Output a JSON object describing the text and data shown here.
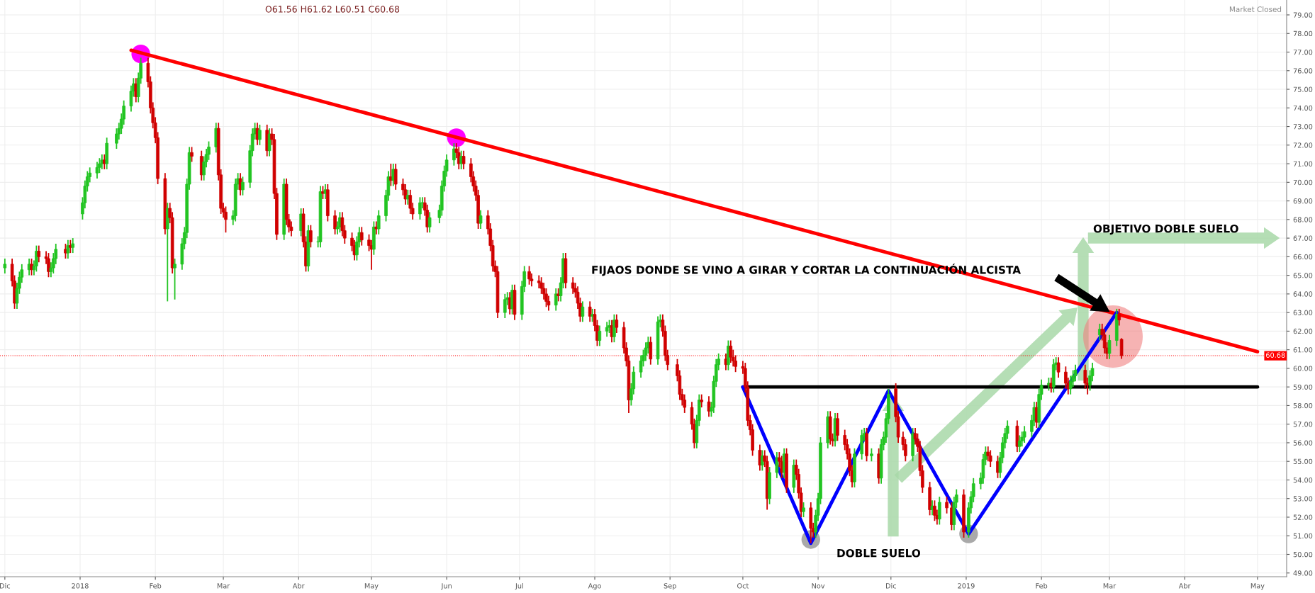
{
  "chart_data": {
    "type": "candlestick",
    "colors": [
      "#22c422",
      "#d00000",
      "#d00000",
      "#22c422",
      "#22c422",
      "#22c422",
      "#22c422",
      "#d00000",
      "#22c422",
      "#22c422",
      "#d00000",
      "#d00000",
      "#d00000",
      "#22c422",
      "#22c422",
      "#22c422",
      "#d00000",
      "#22c422",
      "#d00000",
      "#22c422",
      "#22c422",
      "#22c422",
      "#22c422",
      "#22c422",
      "#22c422",
      "#22c422",
      "#22c422",
      "#d00000",
      "#22c422",
      "#22c422",
      "#22c422",
      "#22c422",
      "#22c422",
      "#22c422",
      "#22c422",
      "#d00000",
      "#22c422",
      "#22c422",
      "#d00000",
      "#d00000",
      "#d00000",
      "#d00000",
      "#d00000",
      "#d00000",
      "#22c422",
      "#d00000",
      "#d00000",
      "#22c422",
      "#22c422",
      "#22c422",
      "#22c422",
      "#22c422",
      "#d00000",
      "#d00000",
      "#22c422",
      "#22c422",
      "#22c422",
      "#22c422",
      "#d00000",
      "#d00000",
      "#d00000",
      "#d00000",
      "#22c422",
      "#22c422",
      "#22c422",
      "#d00000",
      "#22c422",
      "#22c422",
      "#22c422",
      "#22c422",
      "#d00000",
      "#22c422",
      "#d00000",
      "#22c422",
      "#d00000",
      "#d00000",
      "#d00000",
      "#22c422",
      "#d00000",
      "#d00000",
      "#d00000",
      "#22c422",
      "#d00000",
      "#d00000",
      "#22c422",
      "#d00000",
      "#22c422",
      "#22c422",
      "#d00000",
      "#22c422",
      "#d00000",
      "#d00000",
      "#22c422",
      "#22c422",
      "#d00000",
      "#d00000",
      "#d00000",
      "#d00000",
      "#22c422",
      "#22c422",
      "#d00000",
      "#d00000",
      "#d00000",
      "#22c422",
      "#d00000",
      "#22c422",
      "#22c422",
      "#22c422",
      "#d00000",
      "#22c422",
      "#d00000",
      "#d00000",
      "#d00000",
      "#22c422",
      "#d00000",
      "#d00000",
      "#22c422",
      "#22c422",
      "#d00000",
      "#d00000",
      "#22c422",
      "#22c422",
      "#22c422",
      "#22c422",
      "#22c422",
      "#22c422",
      "#d00000",
      "#d00000",
      "#22c422",
      "#d00000",
      "#d00000",
      "#d00000",
      "#d00000",
      "#d00000",
      "#22c422",
      "#d00000",
      "#d00000",
      "#d00000",
      "#d00000",
      "#d00000",
      "#22c422",
      "#22c422",
      "#d00000",
      "#22c422",
      "#d00000",
      "#22c422",
      "#22c422",
      "#d00000",
      "#d00000",
      "#d00000",
      "#d00000",
      "#d00000",
      "#d00000",
      "#d00000",
      "#22c422",
      "#d00000",
      "#22c422",
      "#22c422",
      "#d00000",
      "#d00000",
      "#d00000",
      "#d00000",
      "#d00000",
      "#22c422",
      "#d00000",
      "#22c422",
      "#d00000",
      "#d00000",
      "#22c422",
      "#22c422",
      "#22c422",
      "#d00000",
      "#22c422",
      "#d00000",
      "#d00000",
      "#d00000",
      "#d00000",
      "#22c422",
      "#22c422",
      "#22c422",
      "#22c422",
      "#22c422",
      "#22c422",
      "#d00000",
      "#22c422",
      "#22c422",
      "#d00000",
      "#d00000",
      "#d00000",
      "#d00000",
      "#d00000",
      "#d00000",
      "#d00000",
      "#d00000",
      "#d00000",
      "#22c422",
      "#22c422",
      "#d00000",
      "#d00000",
      "#22c422",
      "#22c422",
      "#22c422",
      "#22c422",
      "#d00000",
      "#22c422",
      "#d00000",
      "#d00000",
      "#d00000",
      "#d00000",
      "#d00000",
      "#d00000",
      "#d00000",
      "#d00000",
      "#d00000",
      "#22c422",
      "#d00000",
      "#d00000",
      "#22c422",
      "#22c422",
      "#d00000",
      "#d00000",
      "#22c422",
      "#d00000",
      "#22c422",
      "#d00000",
      "#d00000",
      "#d00000",
      "#22c422",
      "#d00000",
      "#d00000",
      "#22c422",
      "#22c422",
      "#22c422",
      "#22c422",
      "#d00000",
      "#d00000",
      "#22c422",
      "#d00000",
      "#d00000",
      "#d00000",
      "#d00000",
      "#d00000",
      "#22c422",
      "#22c422",
      "#22c422",
      "#d00000",
      "#22c422",
      "#d00000",
      "#22c422",
      "#22c422",
      "#22c422",
      "#22c422",
      "#d00000",
      "#d00000",
      "#d00000",
      "#d00000",
      "#22c422",
      "#d00000",
      "#d00000",
      "#d00000",
      "#d00000",
      "#d00000",
      "#22c422",
      "#d00000",
      "#d00000",
      "#22c422",
      "#d00000",
      "#d00000",
      "#22c422",
      "#22c422",
      "#d00000",
      "#22c422",
      "#22c422",
      "#22c422",
      "#22c422",
      "#22c422",
      "#22c422",
      "#d00000",
      "#d00000",
      "#d00000",
      "#22c422",
      "#22c422",
      "#22c422",
      "#22c422",
      "#d00000",
      "#22c422",
      "#22c422",
      "#22c422",
      "#22c422",
      "#22c422",
      "#d00000",
      "#22c422",
      "#22c422",
      "#22c422",
      "#d00000",
      "#22c422",
      "#22c422",
      "#d00000",
      "#d00000",
      "#d00000",
      "#22c422",
      "#22c422",
      "#22c422",
      "#d00000",
      "#d00000",
      "#22c422",
      "#22c422",
      "#22c422",
      "#d00000",
      "#d00000",
      "#d00000",
      "#22c422",
      "#22c422",
      "#d00000",
      "#d00000"
    ],
    "xlim": [
      "2017-11-29",
      "2019-05-13"
    ],
    "ylim": [
      48.8,
      79.8
    ],
    "xticks": [
      {
        "value": "2017-12-01",
        "label": "Dic"
      },
      {
        "value": "2018-01-01",
        "label": "2018"
      },
      {
        "value": "2018-02-01",
        "label": "Feb"
      },
      {
        "value": "2018-03-01",
        "label": "Mar"
      },
      {
        "value": "2018-04-01",
        "label": "Abr"
      },
      {
        "value": "2018-05-01",
        "label": "May"
      },
      {
        "value": "2018-06-01",
        "label": "Jun"
      },
      {
        "value": "2018-07-01",
        "label": "Jul"
      },
      {
        "value": "2018-08-01",
        "label": "Ago"
      },
      {
        "value": "2018-09-01",
        "label": "Sep"
      },
      {
        "value": "2018-10-01",
        "label": "Oct"
      },
      {
        "value": "2018-11-01",
        "label": "Nov"
      },
      {
        "value": "2018-12-01",
        "label": "Dic"
      },
      {
        "value": "2019-01-01",
        "label": "2019"
      },
      {
        "value": "2019-02-01",
        "label": "Feb"
      },
      {
        "value": "2019-03-01",
        "label": "Mar"
      },
      {
        "value": "2019-04-01",
        "label": "Abr"
      },
      {
        "value": "2019-05-01",
        "label": "May"
      }
    ],
    "yticks": [
      {
        "value": 49,
        "label": "49.00"
      },
      {
        "value": 50,
        "label": "50.00"
      },
      {
        "value": 51,
        "label": "51.00"
      },
      {
        "value": 52,
        "label": "52.00"
      },
      {
        "value": 53,
        "label": "53.00"
      },
      {
        "value": 54,
        "label": "54.00"
      },
      {
        "value": 55,
        "label": "55.00"
      },
      {
        "value": 56,
        "label": "56.00"
      },
      {
        "value": 57,
        "label": "57.00"
      },
      {
        "value": 58,
        "label": "58.00"
      },
      {
        "value": 59,
        "label": "59.00"
      },
      {
        "value": 60,
        "label": "60.00"
      },
      {
        "value": 61,
        "label": "61.00"
      },
      {
        "value": 62,
        "label": "62.00"
      },
      {
        "value": 63,
        "label": "63.00"
      },
      {
        "value": 64,
        "label": "64.00"
      },
      {
        "value": 65,
        "label": "65.00"
      },
      {
        "value": 66,
        "label": "66.00"
      },
      {
        "value": 67,
        "label": "67.00"
      },
      {
        "value": 68,
        "label": "68.00"
      },
      {
        "value": 69,
        "label": "69.00"
      },
      {
        "value": 70,
        "label": "70.00"
      },
      {
        "value": 71,
        "label": "71.00"
      },
      {
        "value": 72,
        "label": "72.00"
      },
      {
        "value": 73,
        "label": "73.00"
      },
      {
        "value": 74,
        "label": "74.00"
      },
      {
        "value": 75,
        "label": "75.00"
      },
      {
        "value": 76,
        "label": "76.00"
      },
      {
        "value": 77,
        "label": "77.00"
      },
      {
        "value": 78,
        "label": "78.00"
      },
      {
        "value": 79,
        "label": "79.00"
      }
    ],
    "grid": true,
    "x": [
      "2017-12-01",
      "2017-12-04",
      "2017-12-05",
      "2017-12-06",
      "2017-12-07",
      "2017-12-08",
      "2017-12-11",
      "2017-12-12",
      "2017-12-13",
      "2017-12-14",
      "2017-12-15",
      "2017-12-18",
      "2017-12-19",
      "2017-12-20",
      "2017-12-21",
      "2017-12-22",
      "2017-12-26",
      "2017-12-27",
      "2017-12-28",
      "2017-12-29",
      "2018-01-02",
      "2018-01-03",
      "2018-01-04",
      "2018-01-05",
      "2018-01-08",
      "2018-01-09",
      "2018-01-10",
      "2018-01-11",
      "2018-01-12",
      "2018-01-16",
      "2018-01-17",
      "2018-01-18",
      "2018-01-19",
      "2018-01-22",
      "2018-01-23",
      "2018-01-24",
      "2018-01-25",
      "2018-01-26",
      "2018-01-29",
      "2018-01-30",
      "2018-01-31",
      "2018-02-01",
      "2018-02-02",
      "2018-02-05",
      "2018-02-06",
      "2018-02-07",
      "2018-02-08",
      "2018-02-09",
      "2018-02-12",
      "2018-02-13",
      "2018-02-14",
      "2018-02-15",
      "2018-02-16",
      "2018-02-20",
      "2018-02-21",
      "2018-02-22",
      "2018-02-23",
      "2018-02-26",
      "2018-02-27",
      "2018-02-28",
      "2018-03-01",
      "2018-03-02",
      "2018-03-05",
      "2018-03-06",
      "2018-03-07",
      "2018-03-08",
      "2018-03-09",
      "2018-03-12",
      "2018-03-13",
      "2018-03-14",
      "2018-03-15",
      "2018-03-16",
      "2018-03-19",
      "2018-03-20",
      "2018-03-21",
      "2018-03-22",
      "2018-03-23",
      "2018-03-26",
      "2018-03-27",
      "2018-03-28",
      "2018-03-29",
      "2018-04-02",
      "2018-04-03",
      "2018-04-04",
      "2018-04-05",
      "2018-04-06",
      "2018-04-09",
      "2018-04-10",
      "2018-04-11",
      "2018-04-12",
      "2018-04-13",
      "2018-04-16",
      "2018-04-17",
      "2018-04-18",
      "2018-04-19",
      "2018-04-20",
      "2018-04-23",
      "2018-04-24",
      "2018-04-25",
      "2018-04-26",
      "2018-04-27",
      "2018-04-30",
      "2018-05-01",
      "2018-05-02",
      "2018-05-03",
      "2018-05-04",
      "2018-05-07",
      "2018-05-08",
      "2018-05-09",
      "2018-05-10",
      "2018-05-11",
      "2018-05-14",
      "2018-05-15",
      "2018-05-16",
      "2018-05-17",
      "2018-05-18",
      "2018-05-21",
      "2018-05-22",
      "2018-05-23",
      "2018-05-24",
      "2018-05-25",
      "2018-05-29",
      "2018-05-30",
      "2018-05-31",
      "2018-06-01",
      "2018-06-04",
      "2018-06-05",
      "2018-06-06",
      "2018-06-07",
      "2018-06-08",
      "2018-06-11",
      "2018-06-12",
      "2018-06-13",
      "2018-06-14",
      "2018-06-15",
      "2018-06-18",
      "2018-06-19",
      "2018-06-20",
      "2018-06-21",
      "2018-06-22",
      "2018-06-25",
      "2018-06-26",
      "2018-06-27",
      "2018-06-28",
      "2018-06-29",
      "2018-07-02",
      "2018-07-03",
      "2018-07-05",
      "2018-07-06",
      "2018-07-09",
      "2018-07-10",
      "2018-07-11",
      "2018-07-12",
      "2018-07-13",
      "2018-07-16",
      "2018-07-17",
      "2018-07-18",
      "2018-07-19",
      "2018-07-20",
      "2018-07-23",
      "2018-07-24",
      "2018-07-25",
      "2018-07-26",
      "2018-07-27",
      "2018-07-30",
      "2018-07-31",
      "2018-08-01",
      "2018-08-02",
      "2018-08-03",
      "2018-08-06",
      "2018-08-07",
      "2018-08-08",
      "2018-08-09",
      "2018-08-10",
      "2018-08-13",
      "2018-08-14",
      "2018-08-15",
      "2018-08-16",
      "2018-08-17",
      "2018-08-20",
      "2018-08-21",
      "2018-08-22",
      "2018-08-23",
      "2018-08-24",
      "2018-08-27",
      "2018-08-28",
      "2018-08-29",
      "2018-08-30",
      "2018-08-31",
      "2018-09-04",
      "2018-09-05",
      "2018-09-06",
      "2018-09-07",
      "2018-09-10",
      "2018-09-11",
      "2018-09-12",
      "2018-09-13",
      "2018-09-14",
      "2018-09-17",
      "2018-09-18",
      "2018-09-19",
      "2018-09-20",
      "2018-09-21",
      "2018-09-24",
      "2018-09-25",
      "2018-09-26",
      "2018-09-27",
      "2018-09-28",
      "2018-10-01",
      "2018-10-02",
      "2018-10-03",
      "2018-10-04",
      "2018-10-05",
      "2018-10-08",
      "2018-10-09",
      "2018-10-10",
      "2018-10-11",
      "2018-10-12",
      "2018-10-15",
      "2018-10-16",
      "2018-10-17",
      "2018-10-18",
      "2018-10-19",
      "2018-10-22",
      "2018-10-23",
      "2018-10-24",
      "2018-10-25",
      "2018-10-26",
      "2018-10-29",
      "2018-10-30",
      "2018-10-31",
      "2018-11-01",
      "2018-11-02",
      "2018-11-05",
      "2018-11-06",
      "2018-11-07",
      "2018-11-08",
      "2018-11-09",
      "2018-11-12",
      "2018-11-13",
      "2018-11-14",
      "2018-11-15",
      "2018-11-16",
      "2018-11-19",
      "2018-11-20",
      "2018-11-21",
      "2018-11-23",
      "2018-11-26",
      "2018-11-27",
      "2018-11-28",
      "2018-11-29",
      "2018-11-30",
      "2018-12-03",
      "2018-12-04",
      "2018-12-06",
      "2018-12-07",
      "2018-12-10",
      "2018-12-11",
      "2018-12-12",
      "2018-12-13",
      "2018-12-14",
      "2018-12-17",
      "2018-12-18",
      "2018-12-19",
      "2018-12-20",
      "2018-12-21",
      "2018-12-24",
      "2018-12-26",
      "2018-12-27",
      "2018-12-28",
      "2018-12-31",
      "2019-01-02",
      "2019-01-03",
      "2019-01-04",
      "2019-01-07",
      "2019-01-08",
      "2019-01-09",
      "2019-01-10",
      "2019-01-11",
      "2019-01-14",
      "2019-01-15",
      "2019-01-16",
      "2019-01-17",
      "2019-01-18",
      "2019-01-22",
      "2019-01-23",
      "2019-01-24",
      "2019-01-25",
      "2019-01-28",
      "2019-01-29",
      "2019-01-30",
      "2019-01-31",
      "2019-02-01",
      "2019-02-04",
      "2019-02-05",
      "2019-02-06",
      "2019-02-07",
      "2019-02-08",
      "2019-02-11",
      "2019-02-12",
      "2019-02-13",
      "2019-02-14",
      "2019-02-15",
      "2019-02-19",
      "2019-02-20",
      "2019-02-21",
      "2019-02-22",
      "2019-02-25",
      "2019-02-26",
      "2019-02-27",
      "2019-02-28",
      "2019-03-01",
      "2019-03-04",
      "2019-03-05",
      "2019-03-06"
    ],
    "ohlc": [
      [
        65.4,
        65.9,
        65.1,
        65.6
      ],
      [
        65.6,
        65.9,
        64.4,
        64.7
      ],
      [
        64.7,
        65.0,
        63.2,
        63.5
      ],
      [
        63.5,
        64.6,
        63.2,
        64.3
      ],
      [
        64.3,
        65.2,
        64.0,
        64.9
      ],
      [
        64.9,
        65.6,
        64.6,
        65.3
      ],
      [
        65.3,
        65.9,
        65.0,
        65.6
      ],
      [
        65.6,
        65.9,
        65.0,
        65.3
      ],
      [
        65.3,
        65.8,
        65.0,
        65.5
      ],
      [
        65.5,
        66.6,
        65.2,
        66.3
      ],
      [
        66.3,
        66.6,
        65.7,
        66.0
      ],
      [
        66.0,
        66.3,
        65.6,
        65.9
      ],
      [
        65.9,
        66.2,
        64.9,
        65.2
      ],
      [
        65.2,
        65.7,
        64.9,
        65.4
      ],
      [
        65.4,
        66.2,
        65.1,
        65.9
      ],
      [
        65.9,
        66.7,
        65.6,
        66.4
      ],
      [
        66.4,
        66.7,
        65.9,
        66.2
      ],
      [
        66.2,
        66.9,
        65.9,
        66.6
      ],
      [
        66.6,
        66.9,
        66.2,
        66.5
      ],
      [
        66.5,
        67.0,
        66.2,
        66.7
      ],
      [
        68.3,
        69.2,
        68.0,
        68.9
      ],
      [
        68.9,
        70.1,
        68.6,
        69.8
      ],
      [
        69.8,
        70.6,
        69.5,
        70.3
      ],
      [
        70.3,
        70.8,
        70.0,
        70.5
      ],
      [
        70.5,
        71.1,
        70.2,
        70.8
      ],
      [
        70.8,
        71.3,
        70.5,
        71.0
      ],
      [
        71.0,
        71.5,
        70.7,
        71.2
      ],
      [
        71.2,
        71.5,
        70.7,
        71.0
      ],
      [
        71.0,
        72.4,
        70.7,
        72.1
      ],
      [
        72.1,
        72.9,
        71.8,
        72.6
      ],
      [
        72.6,
        73.2,
        72.3,
        72.9
      ],
      [
        72.9,
        73.7,
        72.6,
        73.4
      ],
      [
        73.4,
        74.4,
        73.1,
        74.1
      ],
      [
        74.1,
        75.2,
        73.8,
        74.9
      ],
      [
        74.9,
        75.6,
        74.6,
        75.3
      ],
      [
        75.3,
        75.6,
        74.3,
        74.6
      ],
      [
        74.6,
        75.9,
        74.3,
        75.6
      ],
      [
        75.6,
        76.7,
        75.3,
        76.4
      ],
      [
        76.4,
        76.7,
        75.1,
        75.4
      ],
      [
        75.4,
        75.7,
        73.7,
        74.0
      ],
      [
        74.0,
        74.3,
        72.9,
        73.2
      ],
      [
        73.2,
        73.5,
        72.1,
        72.4
      ],
      [
        72.4,
        72.7,
        69.9,
        70.2
      ],
      [
        70.2,
        70.5,
        67.2,
        67.5
      ],
      [
        67.5,
        68.9,
        63.6,
        68.6
      ],
      [
        68.6,
        68.9,
        67.8,
        68.1
      ],
      [
        68.1,
        68.4,
        65.1,
        65.4
      ],
      [
        65.4,
        65.9,
        63.7,
        65.6
      ],
      [
        65.6,
        67.0,
        65.3,
        66.7
      ],
      [
        66.7,
        67.6,
        66.4,
        67.3
      ],
      [
        67.3,
        70.2,
        67.0,
        69.9
      ],
      [
        69.9,
        71.9,
        69.6,
        71.6
      ],
      [
        71.6,
        71.9,
        71.1,
        71.4
      ],
      [
        71.4,
        71.7,
        70.1,
        70.4
      ],
      [
        70.4,
        71.4,
        70.1,
        71.1
      ],
      [
        71.1,
        71.8,
        70.8,
        71.5
      ],
      [
        71.5,
        72.2,
        71.2,
        71.9
      ],
      [
        71.9,
        73.2,
        71.6,
        72.9
      ],
      [
        72.9,
        73.2,
        70.1,
        70.4
      ],
      [
        70.4,
        70.7,
        68.3,
        68.6
      ],
      [
        68.6,
        68.9,
        68.1,
        68.4
      ],
      [
        68.4,
        68.7,
        67.3,
        68.0
      ],
      [
        68.0,
        68.5,
        67.7,
        68.2
      ],
      [
        68.2,
        70.2,
        67.9,
        69.9
      ],
      [
        69.9,
        70.5,
        69.6,
        70.2
      ],
      [
        70.2,
        70.5,
        69.3,
        69.6
      ],
      [
        69.6,
        70.3,
        69.3,
        70.0
      ],
      [
        70.0,
        72.0,
        69.7,
        71.7
      ],
      [
        71.7,
        72.9,
        71.4,
        72.6
      ],
      [
        72.6,
        73.2,
        72.3,
        72.9
      ],
      [
        72.9,
        73.2,
        72.0,
        72.3
      ],
      [
        72.3,
        73.1,
        72.0,
        72.8
      ],
      [
        72.8,
        73.1,
        71.4,
        71.7
      ],
      [
        71.7,
        72.9,
        71.4,
        72.6
      ],
      [
        72.6,
        72.9,
        72.0,
        72.3
      ],
      [
        72.3,
        72.6,
        69.1,
        69.4
      ],
      [
        69.4,
        69.7,
        66.9,
        67.2
      ],
      [
        67.2,
        70.2,
        66.9,
        69.9
      ],
      [
        69.9,
        70.2,
        67.7,
        68.0
      ],
      [
        68.0,
        68.3,
        67.3,
        67.6
      ],
      [
        67.6,
        67.9,
        67.1,
        67.4
      ],
      [
        67.4,
        68.6,
        67.1,
        68.3
      ],
      [
        68.3,
        68.6,
        66.5,
        66.8
      ],
      [
        66.8,
        67.1,
        65.2,
        65.5
      ],
      [
        65.5,
        67.7,
        65.2,
        67.4
      ],
      [
        67.4,
        67.7,
        66.5,
        66.8
      ],
      [
        66.8,
        67.1,
        66.5,
        66.8
      ],
      [
        66.8,
        69.8,
        66.5,
        69.5
      ],
      [
        69.5,
        69.8,
        69.1,
        69.4
      ],
      [
        69.4,
        69.9,
        69.1,
        69.6
      ],
      [
        69.6,
        69.9,
        67.9,
        68.2
      ],
      [
        68.2,
        68.5,
        67.2,
        67.5
      ],
      [
        67.5,
        67.9,
        67.2,
        67.6
      ],
      [
        67.6,
        68.4,
        67.3,
        68.1
      ],
      [
        68.1,
        68.4,
        67.1,
        67.4
      ],
      [
        67.4,
        67.7,
        66.7,
        67.0
      ],
      [
        67.0,
        67.3,
        66.3,
        66.6
      ],
      [
        66.6,
        66.9,
        65.8,
        66.1
      ],
      [
        66.1,
        67.1,
        65.8,
        66.8
      ],
      [
        66.8,
        67.6,
        66.5,
        67.3
      ],
      [
        67.3,
        67.6,
        66.6,
        66.9
      ],
      [
        66.9,
        67.2,
        66.3,
        66.6
      ],
      [
        66.6,
        66.9,
        65.3,
        66.4
      ],
      [
        66.4,
        67.9,
        66.1,
        67.6
      ],
      [
        67.6,
        67.9,
        67.2,
        67.5
      ],
      [
        67.5,
        68.5,
        67.2,
        68.2
      ],
      [
        68.2,
        69.6,
        67.9,
        69.3
      ],
      [
        69.3,
        70.6,
        69.0,
        70.3
      ],
      [
        70.3,
        71.0,
        69.8,
        70.1
      ],
      [
        70.1,
        71.0,
        69.8,
        70.7
      ],
      [
        70.7,
        71.0,
        69.6,
        69.9
      ],
      [
        69.9,
        70.2,
        69.3,
        69.6
      ],
      [
        69.6,
        69.9,
        68.8,
        69.1
      ],
      [
        69.1,
        69.6,
        68.8,
        69.3
      ],
      [
        69.3,
        69.6,
        68.3,
        68.6
      ],
      [
        68.6,
        68.9,
        68.0,
        68.3
      ],
      [
        68.3,
        69.2,
        68.0,
        68.9
      ],
      [
        68.9,
        69.2,
        68.6,
        68.9
      ],
      [
        68.9,
        69.2,
        68.2,
        68.5
      ],
      [
        68.5,
        68.8,
        67.3,
        67.6
      ],
      [
        67.6,
        68.4,
        67.3,
        68.1
      ],
      [
        68.1,
        68.8,
        67.8,
        68.5
      ],
      [
        68.5,
        70.1,
        68.2,
        69.8
      ],
      [
        69.8,
        70.9,
        69.5,
        70.6
      ],
      [
        70.6,
        71.5,
        70.3,
        71.2
      ],
      [
        71.2,
        72.1,
        70.9,
        71.8
      ],
      [
        71.8,
        72.1,
        71.3,
        71.6
      ],
      [
        71.6,
        71.9,
        70.7,
        71.0
      ],
      [
        71.0,
        71.7,
        70.7,
        71.4
      ],
      [
        71.4,
        71.7,
        70.7,
        71.0
      ],
      [
        71.0,
        71.3,
        70.0,
        70.3
      ],
      [
        70.3,
        70.6,
        69.5,
        69.8
      ],
      [
        69.8,
        70.1,
        69.0,
        69.3
      ],
      [
        69.3,
        69.6,
        67.5,
        67.8
      ],
      [
        67.8,
        68.5,
        67.5,
        68.2
      ],
      [
        68.2,
        68.5,
        67.2,
        67.5
      ],
      [
        67.5,
        67.8,
        66.3,
        66.6
      ],
      [
        66.6,
        66.9,
        65.2,
        65.5
      ],
      [
        65.5,
        65.8,
        64.9,
        65.2
      ],
      [
        65.2,
        65.5,
        62.7,
        63.0
      ],
      [
        63.0,
        64.0,
        62.7,
        63.7
      ],
      [
        63.7,
        64.1,
        63.4,
        63.8
      ],
      [
        63.8,
        64.1,
        62.9,
        63.2
      ],
      [
        63.2,
        64.5,
        62.9,
        64.2
      ],
      [
        64.2,
        64.5,
        62.6,
        62.9
      ],
      [
        62.9,
        64.7,
        62.6,
        64.4
      ],
      [
        64.4,
        65.5,
        64.1,
        65.2
      ],
      [
        65.2,
        65.5,
        64.5,
        64.8
      ],
      [
        64.8,
        65.1,
        64.4,
        64.7
      ],
      [
        64.7,
        65.0,
        64.3,
        64.6
      ],
      [
        64.6,
        64.9,
        64.0,
        64.3
      ],
      [
        64.3,
        64.6,
        63.7,
        64.0
      ],
      [
        64.0,
        64.3,
        63.3,
        63.6
      ],
      [
        63.6,
        63.9,
        63.1,
        63.4
      ],
      [
        63.4,
        64.3,
        63.1,
        64.0
      ],
      [
        64.0,
        64.3,
        63.6,
        63.9
      ],
      [
        63.9,
        64.9,
        63.6,
        64.6
      ],
      [
        64.6,
        66.2,
        64.3,
        65.9
      ],
      [
        65.9,
        66.2,
        64.3,
        64.6
      ],
      [
        64.6,
        64.9,
        64.0,
        64.3
      ],
      [
        64.3,
        64.6,
        63.8,
        64.1
      ],
      [
        64.1,
        64.4,
        63.2,
        63.5
      ],
      [
        63.5,
        63.8,
        62.5,
        62.8
      ],
      [
        62.8,
        63.6,
        62.5,
        63.3
      ],
      [
        63.3,
        63.6,
        62.5,
        62.8
      ],
      [
        62.8,
        63.2,
        62.5,
        62.9
      ],
      [
        62.9,
        63.2,
        62.0,
        62.3
      ],
      [
        62.3,
        62.6,
        61.2,
        61.5
      ],
      [
        61.5,
        62.3,
        61.2,
        62.0
      ],
      [
        62.0,
        62.5,
        61.7,
        62.2
      ],
      [
        62.2,
        62.6,
        61.9,
        62.3
      ],
      [
        62.3,
        62.6,
        61.4,
        61.7
      ],
      [
        61.7,
        62.9,
        61.4,
        62.6
      ],
      [
        62.6,
        62.9,
        61.9,
        62.2
      ],
      [
        62.2,
        62.5,
        60.8,
        61.1
      ],
      [
        61.1,
        61.4,
        60.1,
        60.4
      ],
      [
        60.4,
        60.7,
        57.6,
        58.3
      ],
      [
        58.3,
        59.2,
        58.0,
        58.9
      ],
      [
        58.9,
        60.1,
        58.6,
        59.8
      ],
      [
        59.8,
        60.7,
        59.5,
        60.4
      ],
      [
        60.4,
        61.0,
        60.1,
        60.7
      ],
      [
        60.7,
        61.4,
        60.4,
        61.1
      ],
      [
        61.1,
        61.7,
        60.8,
        61.4
      ],
      [
        61.4,
        61.7,
        60.2,
        60.5
      ],
      [
        60.5,
        62.8,
        60.2,
        62.5
      ],
      [
        62.5,
        62.9,
        62.2,
        62.6
      ],
      [
        62.6,
        62.9,
        61.7,
        62.0
      ],
      [
        62.0,
        62.3,
        60.4,
        60.7
      ],
      [
        60.7,
        61.0,
        59.9,
        60.2
      ],
      [
        60.2,
        60.5,
        59.3,
        59.6
      ],
      [
        59.6,
        59.9,
        58.3,
        58.6
      ],
      [
        58.6,
        58.9,
        58.0,
        58.3
      ],
      [
        58.3,
        58.6,
        57.6,
        57.9
      ],
      [
        57.9,
        58.2,
        56.7,
        57.0
      ],
      [
        57.0,
        57.3,
        55.7,
        56.0
      ],
      [
        56.0,
        57.5,
        55.7,
        57.2
      ],
      [
        57.2,
        58.6,
        56.9,
        58.3
      ],
      [
        58.3,
        58.6,
        57.9,
        58.2
      ],
      [
        58.2,
        58.5,
        57.4,
        57.7
      ],
      [
        57.7,
        58.2,
        57.4,
        57.9
      ],
      [
        57.9,
        59.6,
        57.6,
        59.3
      ],
      [
        59.3,
        60.5,
        59.0,
        60.2
      ],
      [
        60.2,
        60.8,
        59.9,
        60.5
      ],
      [
        60.5,
        60.8,
        59.9,
        60.2
      ],
      [
        60.2,
        61.5,
        59.9,
        61.2
      ],
      [
        61.2,
        61.5,
        60.3,
        60.6
      ],
      [
        60.6,
        61.0,
        60.1,
        60.4
      ],
      [
        60.4,
        60.7,
        59.8,
        60.1
      ],
      [
        60.1,
        60.4,
        59.7,
        60.0
      ],
      [
        60.0,
        60.3,
        58.7,
        59.0
      ],
      [
        59.0,
        59.3,
        56.9,
        57.2
      ],
      [
        57.2,
        57.5,
        56.4,
        56.7
      ],
      [
        56.7,
        57.0,
        55.3,
        55.6
      ],
      [
        55.6,
        55.9,
        54.5,
        54.8
      ],
      [
        54.8,
        55.6,
        54.5,
        55.3
      ],
      [
        55.3,
        55.6,
        54.7,
        55.0
      ],
      [
        55.0,
        55.3,
        52.4,
        53.0
      ],
      [
        53.0,
        54.7,
        52.7,
        54.4
      ],
      [
        54.4,
        55.5,
        54.1,
        55.2
      ],
      [
        55.2,
        55.5,
        54.7,
        55.0
      ],
      [
        55.0,
        55.3,
        54.1,
        54.4
      ],
      [
        54.4,
        55.7,
        54.1,
        55.4
      ],
      [
        55.4,
        55.7,
        53.3,
        53.6
      ],
      [
        53.6,
        55.1,
        53.3,
        54.8
      ],
      [
        54.8,
        55.1,
        54.0,
        54.3
      ],
      [
        54.3,
        54.6,
        53.0,
        53.3
      ],
      [
        53.3,
        53.6,
        52.0,
        52.3
      ],
      [
        52.3,
        52.8,
        52.0,
        52.5
      ],
      [
        52.5,
        52.8,
        50.6,
        51.4
      ],
      [
        51.4,
        51.7,
        50.9,
        51.2
      ],
      [
        51.2,
        52.4,
        50.9,
        52.1
      ],
      [
        52.1,
        53.3,
        51.8,
        53.0
      ],
      [
        53.0,
        56.3,
        52.7,
        56.0
      ],
      [
        56.0,
        57.7,
        55.7,
        57.4
      ],
      [
        57.4,
        57.7,
        55.9,
        56.2
      ],
      [
        56.2,
        56.5,
        55.8,
        56.1
      ],
      [
        56.1,
        57.6,
        55.8,
        57.3
      ],
      [
        57.3,
        57.6,
        56.1,
        56.4
      ],
      [
        56.4,
        56.7,
        55.6,
        55.9
      ],
      [
        55.9,
        56.2,
        55.1,
        55.4
      ],
      [
        55.4,
        55.7,
        54.2,
        54.5
      ],
      [
        54.5,
        54.8,
        53.6,
        53.9
      ],
      [
        53.9,
        55.7,
        53.6,
        55.4
      ],
      [
        55.4,
        56.7,
        55.1,
        56.4
      ],
      [
        56.4,
        56.8,
        56.1,
        56.5
      ],
      [
        56.5,
        56.8,
        55.0,
        55.3
      ],
      [
        55.3,
        55.7,
        55.0,
        55.4
      ],
      [
        55.4,
        55.7,
        53.8,
        54.1
      ],
      [
        54.1,
        56.2,
        53.8,
        55.9
      ],
      [
        55.9,
        56.6,
        55.6,
        56.3
      ],
      [
        56.3,
        57.6,
        56.0,
        57.3
      ],
      [
        57.3,
        58.9,
        57.0,
        58.6
      ],
      [
        58.9,
        59.2,
        57.1,
        57.4
      ],
      [
        57.4,
        57.7,
        56.0,
        56.3
      ],
      [
        56.3,
        56.6,
        55.6,
        55.9
      ],
      [
        55.9,
        56.2,
        55.0,
        55.3
      ],
      [
        55.3,
        56.8,
        55.0,
        56.5
      ],
      [
        56.5,
        56.8,
        55.9,
        56.2
      ],
      [
        56.2,
        56.5,
        55.5,
        55.8
      ],
      [
        55.8,
        56.1,
        54.2,
        54.5
      ],
      [
        54.5,
        54.8,
        53.3,
        53.6
      ],
      [
        53.6,
        53.9,
        52.1,
        52.4
      ],
      [
        52.4,
        52.9,
        52.1,
        52.6
      ],
      [
        52.6,
        52.9,
        51.8,
        52.1
      ],
      [
        52.1,
        52.4,
        51.6,
        51.9
      ],
      [
        51.9,
        53.1,
        51.6,
        52.8
      ],
      [
        52.8,
        53.1,
        52.2,
        52.5
      ],
      [
        52.5,
        52.8,
        51.3,
        51.6
      ],
      [
        51.6,
        53.1,
        51.3,
        52.8
      ],
      [
        52.8,
        53.5,
        52.5,
        53.2
      ],
      [
        53.2,
        53.5,
        50.9,
        51.2
      ],
      [
        51.2,
        52.8,
        50.9,
        52.5
      ],
      [
        52.5,
        53.4,
        52.2,
        53.1
      ],
      [
        53.1,
        54.1,
        52.8,
        53.8
      ],
      [
        53.8,
        54.4,
        53.5,
        54.1
      ],
      [
        54.1,
        55.4,
        53.8,
        55.1
      ],
      [
        55.1,
        55.8,
        54.8,
        55.5
      ],
      [
        55.5,
        55.8,
        55.0,
        55.3
      ],
      [
        55.3,
        55.6,
        54.7,
        55.0
      ],
      [
        55.0,
        55.3,
        54.1,
        54.4
      ],
      [
        54.4,
        55.5,
        54.1,
        55.2
      ],
      [
        55.2,
        56.3,
        54.9,
        56.0
      ],
      [
        56.0,
        56.8,
        55.7,
        56.5
      ],
      [
        56.5,
        57.2,
        56.2,
        56.9
      ],
      [
        56.9,
        57.2,
        55.5,
        55.8
      ],
      [
        55.8,
        56.4,
        55.5,
        56.1
      ],
      [
        56.1,
        56.6,
        55.8,
        56.3
      ],
      [
        56.3,
        56.9,
        56.0,
        56.6
      ],
      [
        56.6,
        57.5,
        56.3,
        57.2
      ],
      [
        57.2,
        58.2,
        56.9,
        57.9
      ],
      [
        57.9,
        58.2,
        56.8,
        57.1
      ],
      [
        57.1,
        58.9,
        56.8,
        58.6
      ],
      [
        58.6,
        59.4,
        58.3,
        59.1
      ],
      [
        59.1,
        59.5,
        58.8,
        59.2
      ],
      [
        59.2,
        59.5,
        58.7,
        59.0
      ],
      [
        59.0,
        60.5,
        58.7,
        60.2
      ],
      [
        60.2,
        60.6,
        59.9,
        60.3
      ],
      [
        60.3,
        60.6,
        59.5,
        59.8
      ],
      [
        59.8,
        60.1,
        58.9,
        59.2
      ],
      [
        59.2,
        59.5,
        58.6,
        58.9
      ],
      [
        58.9,
        59.6,
        58.6,
        59.3
      ],
      [
        59.3,
        59.9,
        59.0,
        59.6
      ],
      [
        59.6,
        60.2,
        59.3,
        59.9
      ],
      [
        59.9,
        60.2,
        58.9,
        59.2
      ],
      [
        59.2,
        59.5,
        58.6,
        59.1
      ],
      [
        59.1,
        59.9,
        58.8,
        59.6
      ],
      [
        59.6,
        60.3,
        59.3,
        60.0
      ],
      [
        61.8,
        62.4,
        61.5,
        62.1
      ],
      [
        62.1,
        62.4,
        61.5,
        61.8
      ],
      [
        61.8,
        62.1,
        60.8,
        61.1
      ],
      [
        61.1,
        61.4,
        60.5,
        60.8
      ],
      [
        60.8,
        61.8,
        60.5,
        61.5
      ],
      [
        61.5,
        63.2,
        61.2,
        62.9
      ],
      [
        62.9,
        63.2,
        62.3,
        62.6
      ],
      [
        61.56,
        61.62,
        60.51,
        60.68
      ]
    ],
    "series": [
      {
        "type": "line",
        "color": "#ff0000",
        "x": [
          "2018-01-22",
          "2019-05-01"
        ],
        "values": [
          77.1,
          60.9
        ]
      },
      {
        "type": "line",
        "color": "#000000",
        "x": [
          "2018-10-01",
          "2019-05-01"
        ],
        "values": [
          59.0,
          59.0
        ]
      },
      {
        "type": "line",
        "color": "#0000ff",
        "x": [
          "2018-10-01",
          "2018-10-29",
          "2018-11-30",
          "2019-01-02",
          "2019-03-04"
        ],
        "values": [
          59.0,
          50.6,
          58.8,
          51.1,
          63.0
        ]
      },
      {
        "type": "scatter",
        "marker": "circle",
        "color": "#ff00ff",
        "x": [
          "2018-01-26",
          "2018-06-05"
        ],
        "values": [
          76.9,
          72.4
        ]
      },
      {
        "type": "scatter",
        "marker": "circle",
        "color": "#a9a9a9",
        "x": [
          "2018-10-29",
          "2019-01-02"
        ],
        "values": [
          50.8,
          51.1
        ]
      }
    ],
    "ref_lines": [
      {
        "axis": "y",
        "value": 60.68,
        "label": "60.68",
        "color": "#ff0000",
        "line_style": "dotted"
      }
    ],
    "annotations": [
      "O61.56 H61.62 L60.51 C60.68",
      "Market Closed",
      "FIJAOS DONDE SE VINO A GIRAR Y CORTAR LA CONTINUACIÓN ALCISTA",
      "DOBLE SUELO",
      "OBJETIVO DOBLE SUELO"
    ]
  }
}
